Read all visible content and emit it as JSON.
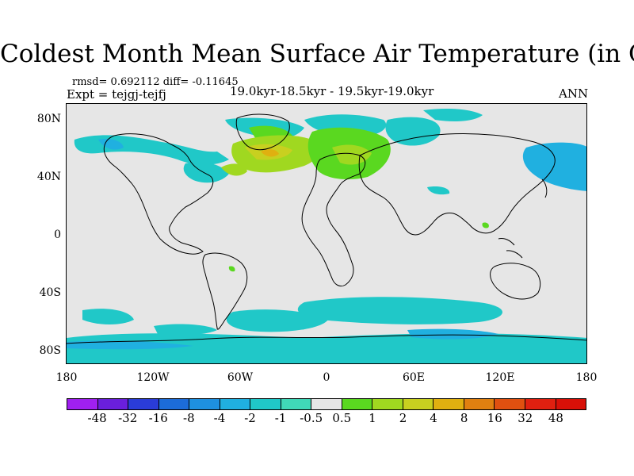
{
  "title": "Coldest Month Mean Surface Air Temperature (in C)",
  "stats": "rmsd= 0.692112 diff= -0.11645",
  "expt": "Expt = tejgj-tejfj",
  "subtitle": "19.0kyr-18.5kyr - 19.5kyr-19.0kyr",
  "season": "ANN",
  "y_ticks": [
    "80N",
    "40N",
    "0",
    "40S",
    "80S"
  ],
  "x_ticks": [
    "180",
    "120W",
    "60W",
    "0",
    "60E",
    "120E",
    "180"
  ],
  "colorbar": {
    "labels": [
      "-48",
      "-32",
      "-16",
      "-8",
      "-4",
      "-2",
      "-1",
      "-0.5",
      "0.5",
      "1",
      "2",
      "4",
      "8",
      "16",
      "32",
      "48"
    ],
    "colors": [
      "#a020f0",
      "#6a1fdc",
      "#2a3cd8",
      "#1c6cd8",
      "#1e90e0",
      "#20b0e0",
      "#20c8c8",
      "#40d8b8",
      "#e6e6e6",
      "#5ad820",
      "#a0d820",
      "#c8d020",
      "#e0b010",
      "#e08010",
      "#e05010",
      "#e02010",
      "#d81008"
    ]
  },
  "map": {
    "background_color": "#e6e6e6",
    "anomaly_patches": [
      {
        "region": "Arctic Canada / Greenland",
        "color": "#20c8c8"
      },
      {
        "region": "North Atlantic",
        "color": "#a0d820"
      },
      {
        "region": "Scandinavia / Europe",
        "color": "#5ad820"
      },
      {
        "region": "Siberia / Arctic",
        "color": "#20c8c8"
      },
      {
        "region": "North Pacific / Japan",
        "color": "#20b0e0"
      },
      {
        "region": "Eastern North America",
        "color": "#20c8c8"
      },
      {
        "region": "Southern Ocean",
        "color": "#20c8c8"
      },
      {
        "region": "Antarctica",
        "color": "#20c8c8"
      }
    ]
  }
}
